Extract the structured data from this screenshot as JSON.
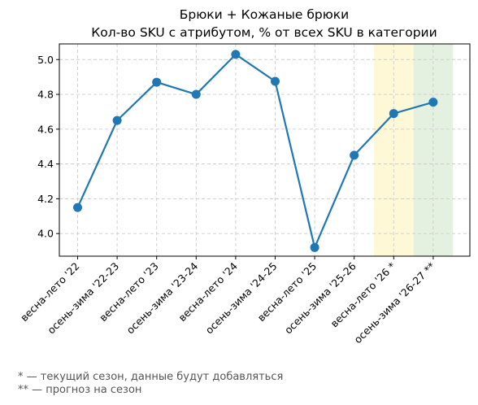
{
  "chart_data": {
    "type": "line",
    "title_lines": [
      "Брюки + Кожаные брюки",
      "Кол-во SKU с атрибутом, % от всех SKU в категории"
    ],
    "xlabel": "",
    "ylabel": "",
    "categories": [
      "весна-лето '22",
      "осень-зима '22-23",
      "весна-лето '23",
      "осень-зима '23-24",
      "весна-лето '24",
      "осень-зима '24-25",
      "весна-лето '25",
      "осень-зима '25-26",
      "весна-лето '26 *",
      "осень-зима '26-27 **"
    ],
    "series": [
      {
        "values": [
          4.15,
          4.65,
          4.87,
          4.8,
          5.03,
          4.875,
          3.92,
          4.45,
          4.69,
          4.755
        ]
      }
    ],
    "ylim": [
      3.87,
      5.09
    ],
    "yticks": [
      4.0,
      4.2,
      4.4,
      4.6,
      4.8,
      5.0
    ],
    "grid": true,
    "highlight_bands": [
      {
        "category": "весна-лето '26 *",
        "color": "#fff8d6"
      },
      {
        "category": "осень-зима '26-27 **",
        "color": "#e4f1e0"
      }
    ],
    "line_color": "#1f77b4"
  },
  "footnotes": [
    "* — текущий сезон, данные будут добавляться",
    "** — прогноз на сезон"
  ]
}
